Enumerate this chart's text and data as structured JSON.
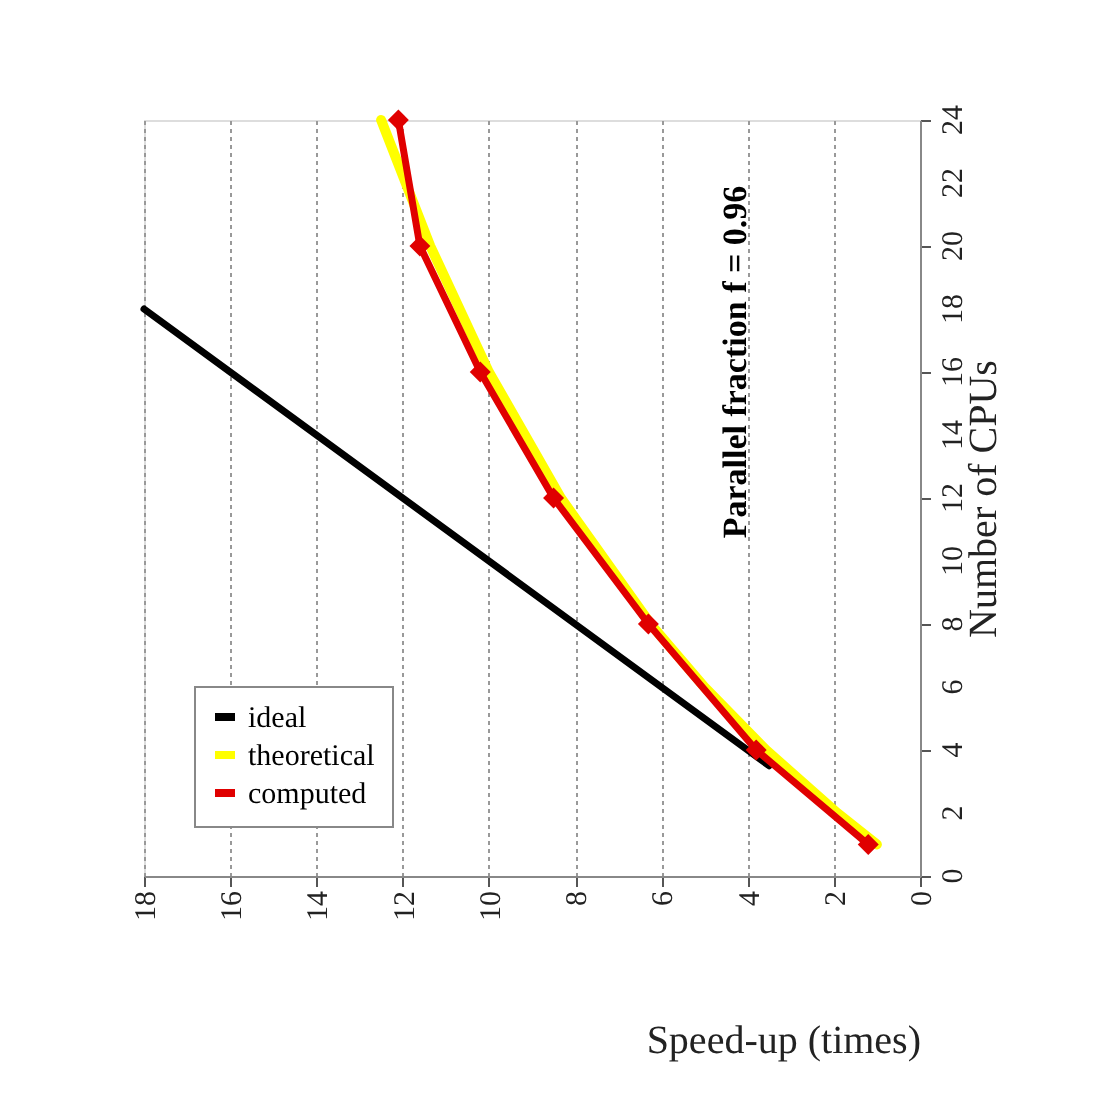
{
  "chart_data": {
    "type": "line",
    "xlabel": "Speed-up (times)",
    "ylabel": "Number of CPUs",
    "xlim": [
      18,
      0
    ],
    "xticks": [
      18,
      16,
      14,
      12,
      10,
      8,
      6,
      4,
      2,
      0
    ],
    "ylim": [
      0,
      24
    ],
    "yticks": [
      0,
      2,
      4,
      6,
      8,
      10,
      12,
      14,
      16,
      18,
      20,
      22,
      24
    ],
    "grid": "x",
    "legend": "bottom left",
    "line_style": "solid",
    "annotations": [
      "Parallel fraction f = 0.96"
    ],
    "series": [
      {
        "name": "ideal",
        "color": "#000000",
        "marker": "none",
        "x": [
          3.5,
          18
        ],
        "values": [
          3.5,
          18
        ]
      },
      {
        "name": "theoretical",
        "color": "#ffff00",
        "marker": "none",
        "x": [
          1,
          1.92,
          3.57,
          5.0,
          6.25,
          8.33,
          10.0,
          11.36,
          12.5
        ],
        "values": [
          1,
          2,
          4,
          6,
          8,
          12,
          16,
          20,
          24
        ]
      },
      {
        "name": "computed",
        "color": "#e00000",
        "marker": "diamond",
        "x": [
          1.2,
          3.8,
          6.3,
          8.5,
          10.2,
          11.6,
          12.1
        ],
        "values": [
          1,
          4,
          8,
          12,
          16,
          20,
          24
        ]
      }
    ]
  }
}
